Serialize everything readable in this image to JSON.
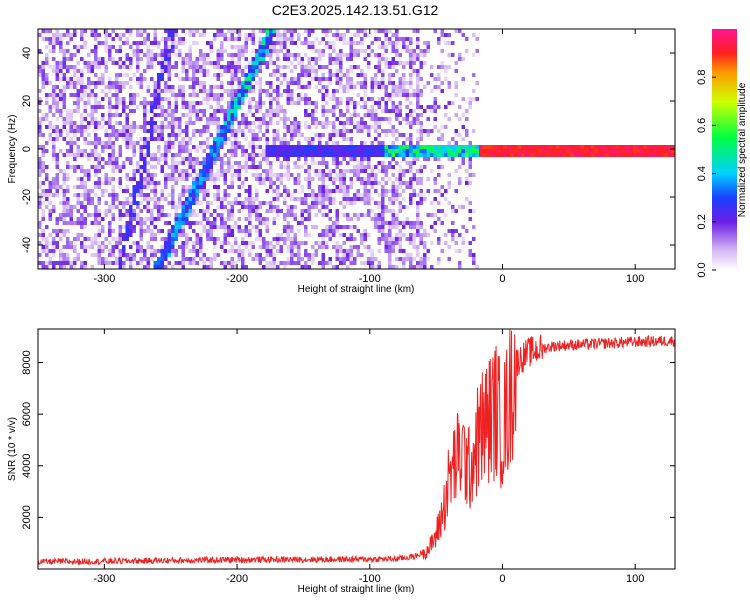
{
  "title": "C2E3.2025.142.13.51.G12",
  "chart_data": [
    {
      "type": "heatmap",
      "xlabel": "Height of straight line (km)",
      "ylabel": "Frequency (Hz)",
      "xlim": [
        -350,
        130
      ],
      "ylim": [
        -50,
        50
      ],
      "xticks": [
        -300,
        -200,
        -100,
        0,
        100
      ],
      "yticks": [
        -40,
        -20,
        0,
        20,
        40
      ],
      "colorbar": {
        "label": "Normalized spectral amplitude",
        "range": [
          0,
          1
        ],
        "ticks": [
          0.0,
          0.2,
          0.4,
          0.6,
          0.8
        ]
      },
      "features": [
        {
          "kind": "diagonal-track",
          "x": [
            -262,
            -175
          ],
          "y": [
            -50,
            50
          ]
        },
        {
          "kind": "diagonal-track",
          "x": [
            -290,
            -250
          ],
          "y": [
            -50,
            50
          ]
        },
        {
          "kind": "horizontal-track",
          "x": [
            -180,
            130
          ],
          "y": 0,
          "peak_amplitude": 0.95
        }
      ]
    },
    {
      "type": "line",
      "xlabel": "Height of straight line (km)",
      "ylabel": "SNR (10 * v/v)",
      "xlim": [
        -350,
        130
      ],
      "ylim": [
        0,
        9300
      ],
      "xticks": [
        -300,
        -200,
        -100,
        0,
        100
      ],
      "yticks": [
        2000,
        4000,
        6000,
        8000
      ],
      "series": [
        {
          "color": "#ee2222",
          "x": [
            -350,
            -300,
            -250,
            -200,
            -150,
            -100,
            -80,
            -65,
            -55,
            -50,
            -45,
            -40,
            -35,
            -30,
            -25,
            -20,
            -15,
            -10,
            -5,
            0,
            5,
            10,
            15,
            20,
            30,
            40,
            60,
            80,
            100,
            130
          ],
          "y": [
            280,
            300,
            330,
            360,
            370,
            380,
            390,
            500,
            800,
            1300,
            2200,
            3500,
            4200,
            4500,
            3800,
            4800,
            5500,
            5800,
            6200,
            5400,
            6500,
            8000,
            8200,
            8400,
            8550,
            8650,
            8700,
            8750,
            8800,
            8850
          ]
        }
      ]
    }
  ]
}
